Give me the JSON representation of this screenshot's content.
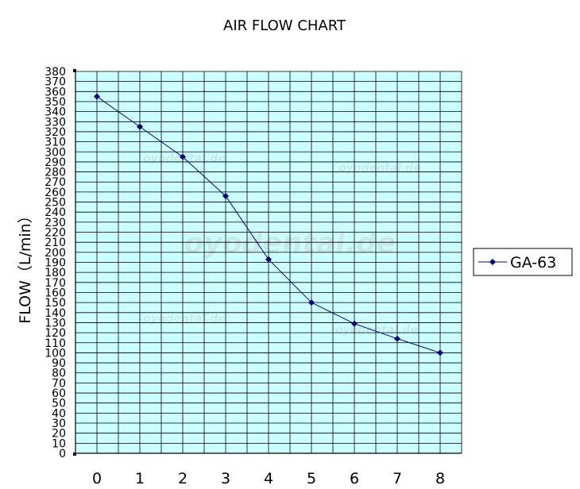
{
  "chart_data": {
    "type": "line",
    "title": "AIR FLOW CHART",
    "xlabel": "",
    "ylabel": "FLOW（L/min）",
    "x": [
      0,
      1,
      2,
      3,
      4,
      5,
      6,
      7,
      8
    ],
    "series": [
      {
        "name": "GA-63",
        "values": [
          355,
          325,
          295,
          256,
          193,
          150,
          129,
          114,
          100
        ]
      }
    ],
    "ylim": [
      0,
      380
    ],
    "ytick_step": 10,
    "grid": true,
    "legend_position": "right",
    "colors": {
      "plot_background": "#ccffff",
      "grid": "#000000",
      "series": "#000080"
    },
    "watermark": "oyodental.de"
  }
}
